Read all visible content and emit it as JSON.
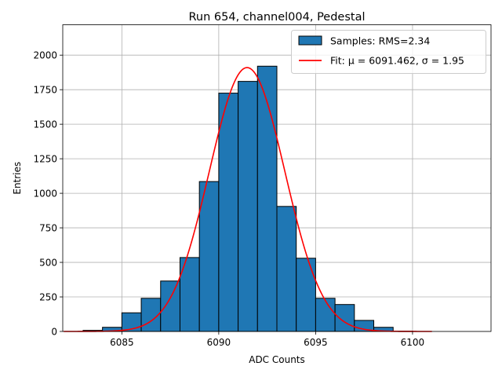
{
  "chart_data": {
    "type": "bar",
    "title": "Run 654, channel004, Pedestal",
    "xlabel": "ADC Counts",
    "ylabel": "Entries",
    "xlim": [
      6081.95,
      6104.05
    ],
    "ylim": [
      0,
      2220
    ],
    "xticks": [
      6085,
      6090,
      6095,
      6100
    ],
    "yticks": [
      0,
      250,
      500,
      750,
      1000,
      1250,
      1500,
      1750,
      2000
    ],
    "grid": true,
    "legend_position": "top-right",
    "histogram": {
      "name": "Samples: RMS=2.34",
      "color": "#1f77b4",
      "edge_color": "#000000",
      "bins": [
        {
          "x0": 6083,
          "x1": 6084,
          "count": 8
        },
        {
          "x0": 6084,
          "x1": 6085,
          "count": 30
        },
        {
          "x0": 6085,
          "x1": 6086,
          "count": 135
        },
        {
          "x0": 6086,
          "x1": 6087,
          "count": 240
        },
        {
          "x0": 6087,
          "x1": 6088,
          "count": 365
        },
        {
          "x0": 6088,
          "x1": 6089,
          "count": 535
        },
        {
          "x0": 6089,
          "x1": 6090,
          "count": 1085
        },
        {
          "x0": 6090,
          "x1": 6091,
          "count": 1725
        },
        {
          "x0": 6091,
          "x1": 6092,
          "count": 1810
        },
        {
          "x0": 6092,
          "x1": 6093,
          "count": 1920
        },
        {
          "x0": 6093,
          "x1": 6094,
          "count": 905
        },
        {
          "x0": 6094,
          "x1": 6095,
          "count": 530
        },
        {
          "x0": 6095,
          "x1": 6096,
          "count": 240
        },
        {
          "x0": 6096,
          "x1": 6097,
          "count": 195
        },
        {
          "x0": 6097,
          "x1": 6098,
          "count": 80
        },
        {
          "x0": 6098,
          "x1": 6099,
          "count": 30
        },
        {
          "x0": 6099,
          "x1": 6100,
          "count": 2
        }
      ]
    },
    "fit": {
      "name": "Fit: μ = 6091.462, σ = 1.95",
      "color": "#ff0000",
      "mu": 6091.462,
      "sigma": 1.95,
      "amplitude": 1910,
      "x_range": [
        6082,
        6101
      ]
    }
  }
}
